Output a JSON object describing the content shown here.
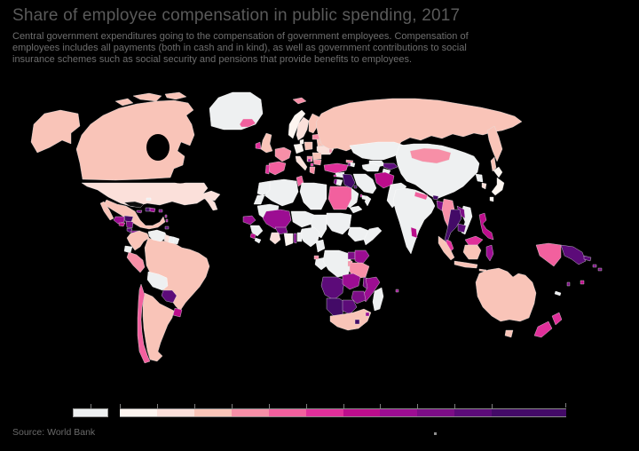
{
  "theme": {
    "background": "#000000",
    "title_color": "#5a5a5a",
    "subtitle_color": "#6e6e6e",
    "source_color": "#6a6a6a"
  },
  "header": {
    "title": "Share of employee compensation in public spending, 2017",
    "subtitle_lines": [
      "Central government expenditures going to the compensation of government employees. Compensation of",
      "employees includes all payments (both in cash and in kind), as well as government contributions to social",
      "insurance schemes such as social security and pensions that provide benefits to employees."
    ]
  },
  "footer": {
    "source": "Source: World Bank"
  },
  "chart_data": {
    "type": "choropleth_map",
    "title": "Share of employee compensation in public spending, 2017",
    "year_shown": "2017",
    "legend": {
      "position": "bottom",
      "no_data_color": "#eef0f1",
      "bin_colors": [
        "#fdf5f0",
        "#fbe0da",
        "#f9c4b8",
        "#f78fa7",
        "#f2609e",
        "#e02f9a",
        "#bc0d8c",
        "#9c0d92",
        "#7c0d86",
        "#5c0b79",
        "#430a67"
      ],
      "bin_flex_widths": [
        1,
        1,
        1,
        1,
        1,
        1,
        1,
        1,
        1,
        1,
        2
      ],
      "tick_labels_visible": false
    },
    "entities": [
      {
        "name": "Canada",
        "color": "#f9c4b8"
      },
      {
        "name": "Alaska (United States)",
        "color": "#f9c4b8"
      },
      {
        "name": "United States",
        "color": "#fbe0da"
      },
      {
        "name": "Greenland",
        "color": "#eef0f1"
      },
      {
        "name": "Mexico",
        "color": "#f9c4b8"
      },
      {
        "name": "Guatemala",
        "color": "#9c0d92"
      },
      {
        "name": "Honduras",
        "color": "#430a67"
      },
      {
        "name": "El Salvador",
        "color": "#bc0d8c"
      },
      {
        "name": "Nicaragua",
        "color": "#7c0d86"
      },
      {
        "name": "Costa Rica",
        "color": "#5c0b79"
      },
      {
        "name": "Panama",
        "color": "#7c0d86"
      },
      {
        "name": "Cuba",
        "color": "#0d0d0d"
      },
      {
        "name": "Bahamas",
        "color": "#eef0f1"
      },
      {
        "name": "Jamaica",
        "color": "#7c0d86"
      },
      {
        "name": "Haiti",
        "color": "#430a67"
      },
      {
        "name": "Dominican Republic",
        "color": "#9c0d92"
      },
      {
        "name": "Puerto Rico",
        "color": "#7c0d86"
      },
      {
        "name": "Lesser Antilles",
        "color": "#9c0d92"
      },
      {
        "name": "Trinidad and Tobago",
        "color": "#5c0b79"
      },
      {
        "name": "Colombia",
        "color": "#f9c4b8"
      },
      {
        "name": "Venezuela",
        "color": "#eef0f1"
      },
      {
        "name": "Guyana",
        "color": "#fbe0da"
      },
      {
        "name": "Suriname",
        "color": "#eef0f1"
      },
      {
        "name": "French Guiana",
        "color": "#eef0f1"
      },
      {
        "name": "Ecuador",
        "color": "#eef0f1"
      },
      {
        "name": "Peru",
        "color": "#f78fa7"
      },
      {
        "name": "Brazil",
        "color": "#f9c4b8"
      },
      {
        "name": "Bolivia",
        "color": "#eef0f1"
      },
      {
        "name": "Paraguay",
        "color": "#5c0b79"
      },
      {
        "name": "Uruguay",
        "color": "#bc0d8c"
      },
      {
        "name": "Argentina",
        "color": "#f9c4b8"
      },
      {
        "name": "Chile",
        "color": "#f2609e"
      },
      {
        "name": "Iceland",
        "color": "#f2609e"
      },
      {
        "name": "Norway",
        "color": "#fdf5f0"
      },
      {
        "name": "Sweden",
        "color": "#fbe0da"
      },
      {
        "name": "Finland",
        "color": "#f9c4b8"
      },
      {
        "name": "Denmark",
        "color": "#fdf5f0"
      },
      {
        "name": "United Kingdom",
        "color": "#f9c4b8"
      },
      {
        "name": "Ireland",
        "color": "#e02f9a"
      },
      {
        "name": "France",
        "color": "#f78fa7"
      },
      {
        "name": "Spain",
        "color": "#f2609e"
      },
      {
        "name": "Portugal",
        "color": "#e02f9a"
      },
      {
        "name": "Germany",
        "color": "#fdf5f0"
      },
      {
        "name": "Italy",
        "color": "#fbe0da"
      },
      {
        "name": "Poland",
        "color": "#f9c4b8"
      },
      {
        "name": "Baltic states",
        "color": "#f78fa7"
      },
      {
        "name": "Belarus",
        "color": "#f9c4b8"
      },
      {
        "name": "Ukraine",
        "color": "#fbe0da"
      },
      {
        "name": "Moldova",
        "color": "#f78fa7"
      },
      {
        "name": "Romania",
        "color": "#f9c4b8"
      },
      {
        "name": "Bulgaria",
        "color": "#f78fa7"
      },
      {
        "name": "Serbia",
        "color": "#f78fa7"
      },
      {
        "name": "Bosnia and Herzegovina",
        "color": "#9c0d92"
      },
      {
        "name": "North Macedonia",
        "color": "#e02f9a"
      },
      {
        "name": "Greece",
        "color": "#f78fa7"
      },
      {
        "name": "Svalbard",
        "color": "#f78fa7"
      },
      {
        "name": "Turkey",
        "color": "#e02f9a"
      },
      {
        "name": "Cyprus",
        "color": "#bc0d8c"
      },
      {
        "name": "Georgia",
        "color": "#f78fa7"
      },
      {
        "name": "Armenia",
        "color": "#7c0d86"
      },
      {
        "name": "Azerbaijan",
        "color": "#eef0f1"
      },
      {
        "name": "Syria",
        "color": "#eef0f1"
      },
      {
        "name": "Israel",
        "color": "#7c0d86"
      },
      {
        "name": "Jordan",
        "color": "#eef0f1"
      },
      {
        "name": "Iraq",
        "color": "#430a67"
      },
      {
        "name": "Kuwait",
        "color": "#430a67"
      },
      {
        "name": "Saudi Arabia",
        "color": "#eef0f1"
      },
      {
        "name": "Qatar",
        "color": "#bc0d8c"
      },
      {
        "name": "United Arab Emirates",
        "color": "#eef0f1"
      },
      {
        "name": "Oman",
        "color": "#eef0f1"
      },
      {
        "name": "Yemen",
        "color": "#eef0f1"
      },
      {
        "name": "Iran",
        "color": "#eef0f1"
      },
      {
        "name": "Morocco",
        "color": "#eef0f1"
      },
      {
        "name": "Western Sahara",
        "color": "#eef0f1"
      },
      {
        "name": "Algeria",
        "color": "#eef0f1"
      },
      {
        "name": "Tunisia",
        "color": "#f2609e"
      },
      {
        "name": "Libya",
        "color": "#eef0f1"
      },
      {
        "name": "Egypt",
        "color": "#f2609e"
      },
      {
        "name": "Mauritania",
        "color": "#eef0f1"
      },
      {
        "name": "Senegal",
        "color": "#9c0d92"
      },
      {
        "name": "Guinea",
        "color": "#eef0f1"
      },
      {
        "name": "Sierra Leone",
        "color": "#bc0d8c"
      },
      {
        "name": "Liberia",
        "color": "#eef0f1"
      },
      {
        "name": "Mali",
        "color": "#9c0d92"
      },
      {
        "name": "Burkina Faso",
        "color": "#7c0d86"
      },
      {
        "name": "Niger",
        "color": "#eef0f1"
      },
      {
        "name": "Chad",
        "color": "#eef0f1"
      },
      {
        "name": "Sudan",
        "color": "#eef0f1"
      },
      {
        "name": "Ethiopia",
        "color": "#eef0f1"
      },
      {
        "name": "Somalia",
        "color": "#eef0f1"
      },
      {
        "name": "Nigeria",
        "color": "#eef0f1"
      },
      {
        "name": "Cote d'Ivoire",
        "color": "#fbe0da"
      },
      {
        "name": "Ghana",
        "color": "#fdf5f0"
      },
      {
        "name": "Togo",
        "color": "#7c0d86"
      },
      {
        "name": "Benin",
        "color": "#eef0f1"
      },
      {
        "name": "Cameroon",
        "color": "#eef0f1"
      },
      {
        "name": "Equatorial Guinea",
        "color": "#f78fa7"
      },
      {
        "name": "Congo",
        "color": "#eef0f1"
      },
      {
        "name": "Democratic Republic of Congo",
        "color": "#eef0f1"
      },
      {
        "name": "Uganda",
        "color": "#7c0d86"
      },
      {
        "name": "Kenya",
        "color": "#9c0d92"
      },
      {
        "name": "Rwanda",
        "color": "#f78fa7"
      },
      {
        "name": "Tanzania",
        "color": "#f78fa7"
      },
      {
        "name": "Angola",
        "color": "#5c0b79"
      },
      {
        "name": "Zambia",
        "color": "#9c0d92"
      },
      {
        "name": "Malawi",
        "color": "#7c0d86"
      },
      {
        "name": "Mozambique",
        "color": "#9c0d92"
      },
      {
        "name": "Zimbabwe",
        "color": "#7c0d86"
      },
      {
        "name": "Namibia",
        "color": "#430a67"
      },
      {
        "name": "Botswana",
        "color": "#5c0b79"
      },
      {
        "name": "South Africa",
        "color": "#f9c4b8"
      },
      {
        "name": "Lesotho",
        "color": "#430a67"
      },
      {
        "name": "Eswatini",
        "color": "#9c0d92"
      },
      {
        "name": "Madagascar",
        "color": "#eef0f1"
      },
      {
        "name": "Mauritius",
        "color": "#9c0d92"
      },
      {
        "name": "Russia",
        "color": "#f9c4b8"
      },
      {
        "name": "Kazakhstan",
        "color": "#eef0f1"
      },
      {
        "name": "Uzbekistan",
        "color": "#eef0f1"
      },
      {
        "name": "Turkmenistan",
        "color": "#eef0f1"
      },
      {
        "name": "Kyrgyzstan",
        "color": "#5c0b79"
      },
      {
        "name": "Tajikistan",
        "color": "#eef0f1"
      },
      {
        "name": "Afghanistan",
        "color": "#bc0d8c"
      },
      {
        "name": "Pakistan",
        "color": "#eef0f1"
      },
      {
        "name": "India",
        "color": "#eef0f1"
      },
      {
        "name": "Nepal",
        "color": "#f2609e"
      },
      {
        "name": "Bhutan",
        "color": "#430a67"
      },
      {
        "name": "Bangladesh",
        "color": "#7c0d86"
      },
      {
        "name": "Sri Lanka",
        "color": "#bc0d8c"
      },
      {
        "name": "Myanmar",
        "color": "#f78fa7"
      },
      {
        "name": "Thailand",
        "color": "#430a67"
      },
      {
        "name": "Laos",
        "color": "#7c0d86"
      },
      {
        "name": "Cambodia",
        "color": "#5c0b79"
      },
      {
        "name": "Vietnam",
        "color": "#eef0f1"
      },
      {
        "name": "China",
        "color": "#eef0f1"
      },
      {
        "name": "Mongolia",
        "color": "#f78fa7"
      },
      {
        "name": "North Korea",
        "color": "#eef0f1"
      },
      {
        "name": "South Korea",
        "color": "#fbe0da"
      },
      {
        "name": "Japan",
        "color": "#fdf5f0"
      },
      {
        "name": "Philippines",
        "color": "#bc0d8c"
      },
      {
        "name": "Malaysia",
        "color": "#e02f9a"
      },
      {
        "name": "Indonesia",
        "color": "#f9c4b8"
      },
      {
        "name": "Sulawesi (Indonesia)",
        "color": "#9c0d92"
      },
      {
        "name": "Papua (Indonesia)",
        "color": "#f2609e"
      },
      {
        "name": "Papua New Guinea",
        "color": "#5c0b79"
      },
      {
        "name": "Solomon Islands",
        "color": "#7c0d86"
      },
      {
        "name": "Vanuatu",
        "color": "#7c0d86"
      },
      {
        "name": "Fiji",
        "color": "#bc0d8c"
      },
      {
        "name": "New Caledonia",
        "color": "#eef0f1"
      },
      {
        "name": "Australia",
        "color": "#f9c4b8"
      },
      {
        "name": "New Zealand",
        "color": "#e02f9a"
      }
    ]
  }
}
